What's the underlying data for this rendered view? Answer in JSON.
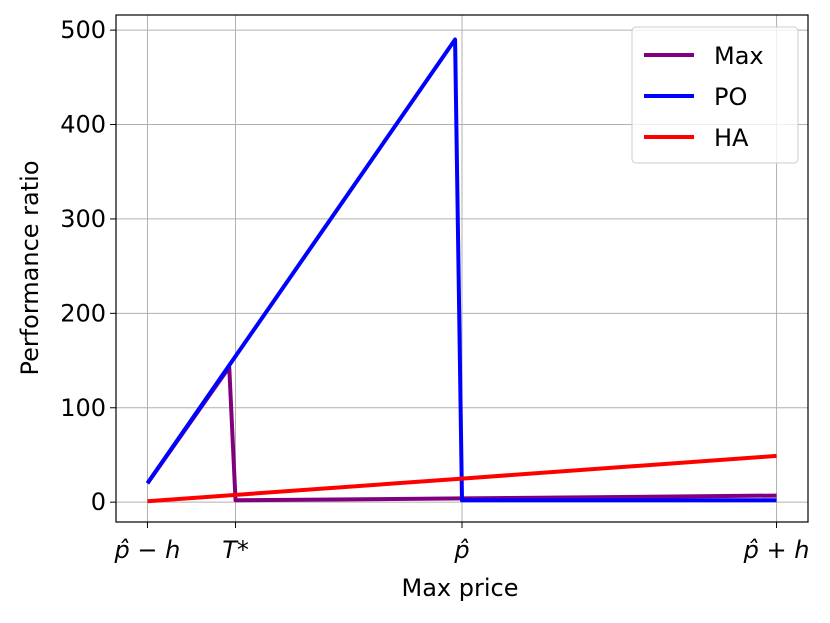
{
  "chart_data": {
    "type": "line",
    "xlabel": "Max price",
    "ylabel": "Performance ratio",
    "xlim": [
      -0.1,
      2.1
    ],
    "ylim": [
      -21,
      516
    ],
    "xticks": [
      {
        "value": 0,
        "label": "p̂ − h"
      },
      {
        "value": 0.28,
        "label": "T*"
      },
      {
        "value": 1,
        "label": "p̂"
      },
      {
        "value": 2,
        "label": "p̂ + h"
      }
    ],
    "yticks": [
      0,
      100,
      200,
      300,
      400,
      500
    ],
    "grid": true,
    "legend": "upper right",
    "series": [
      {
        "name": "Max",
        "color": "#800080",
        "x": [
          0,
          0.26,
          0.28,
          1,
          2
        ],
        "values": [
          20,
          143,
          2,
          4,
          7
        ]
      },
      {
        "name": "PO",
        "color": "#0000ff",
        "x": [
          0,
          0.978,
          1,
          2
        ],
        "values": [
          20,
          490,
          2,
          2
        ]
      },
      {
        "name": "HA",
        "color": "#ff0000",
        "x": [
          0,
          1,
          2
        ],
        "values": [
          1,
          25,
          49
        ]
      }
    ]
  }
}
